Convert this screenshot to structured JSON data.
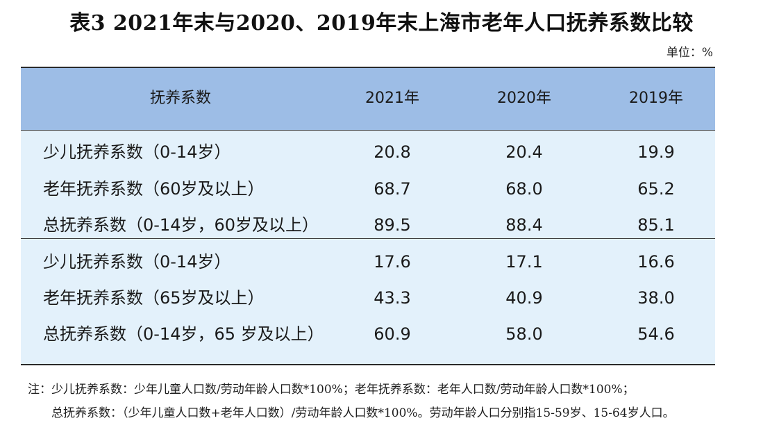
{
  "title": "表3  2021年末与2020、2019年末上海市老年人口抚养系数比较",
  "unit": "单位：%",
  "table": {
    "headers": [
      "抚养系数",
      "2021年",
      "2020年",
      "2019年"
    ],
    "groups": [
      {
        "rows": [
          {
            "label": "少儿抚养系数（0-14岁）",
            "values": [
              "20.8",
              "20.4",
              "19.9"
            ]
          },
          {
            "label": "老年抚养系数（60岁及以上）",
            "values": [
              "68.7",
              "68.0",
              "65.2"
            ]
          },
          {
            "label": "总抚养系数（0-14岁，60岁及以上）",
            "values": [
              "89.5",
              "88.4",
              "85.1"
            ]
          }
        ]
      },
      {
        "rows": [
          {
            "label": "少儿抚养系数（0-14岁）",
            "values": [
              "17.6",
              "17.1",
              "16.6"
            ]
          },
          {
            "label": "老年抚养系数（65岁及以上）",
            "values": [
              "43.3",
              "40.9",
              "38.0"
            ]
          },
          {
            "label": "总抚养系数（0-14岁，65 岁及以上）",
            "values": [
              "60.9",
              "58.0",
              "54.6"
            ]
          }
        ]
      }
    ]
  },
  "notes": {
    "line1": "注：少儿抚养系数：少年儿童人口数/劳动年龄人口数*100%；老年抚养系数：老年人口数/劳动年龄人口数*100%；",
    "line2": "总抚养系数：（少年儿童人口数+老年人口数）/劳动年龄人口数*100%。劳动年龄人口分别指15-59岁、15-64岁人口。"
  },
  "colors": {
    "header_background": "#9dbde6",
    "body_background": "#e3f1fb",
    "rule": "#2a2a2a"
  }
}
